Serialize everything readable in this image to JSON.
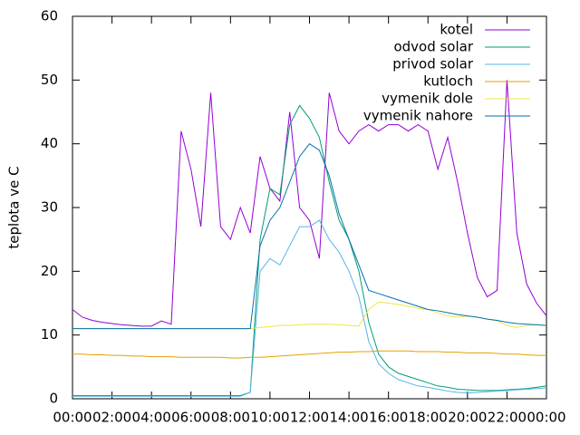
{
  "chart_data": {
    "type": "line",
    "ylabel": "teplota ve C",
    "x": [
      0,
      0.5,
      1,
      1.5,
      2,
      2.5,
      3,
      3.5,
      4,
      4.5,
      5,
      5.5,
      6,
      6.5,
      7,
      7.5,
      8,
      8.5,
      9,
      9.5,
      10,
      10.5,
      11,
      11.5,
      12,
      12.5,
      13,
      13.5,
      14,
      14.5,
      15,
      15.5,
      16,
      16.5,
      17,
      17.5,
      18,
      18.5,
      19,
      19.5,
      20,
      20.5,
      21,
      21.5,
      22,
      22.5,
      23,
      23.5,
      24
    ],
    "xlim": [
      0,
      24
    ],
    "xticks": [
      {
        "value": 0,
        "label": "00:00"
      },
      {
        "value": 2,
        "label": "02:00"
      },
      {
        "value": 4,
        "label": "04:00"
      },
      {
        "value": 6,
        "label": "06:00"
      },
      {
        "value": 8,
        "label": "08:00"
      },
      {
        "value": 10,
        "label": "10:00"
      },
      {
        "value": 12,
        "label": "12:00"
      },
      {
        "value": 14,
        "label": "14:00"
      },
      {
        "value": 16,
        "label": "16:00"
      },
      {
        "value": 18,
        "label": "18:00"
      },
      {
        "value": 20,
        "label": "20:00"
      },
      {
        "value": 22,
        "label": "22:00"
      },
      {
        "value": 24,
        "label": "00:00"
      }
    ],
    "ylim": [
      0,
      60
    ],
    "yticks": [
      0,
      10,
      20,
      30,
      40,
      50,
      60
    ],
    "legend": "top-right",
    "series": [
      {
        "name": "kotel",
        "color": "#9400d3",
        "values": [
          14,
          12.8,
          12.3,
          12,
          11.8,
          11.6,
          11.5,
          11.4,
          11.4,
          12.2,
          11.7,
          42,
          36,
          27,
          48,
          27,
          25,
          30,
          26,
          38,
          33,
          31,
          45,
          30,
          28,
          22,
          48,
          42,
          40,
          42,
          43,
          42,
          43,
          43,
          42,
          43,
          42,
          36,
          41,
          34,
          26,
          19,
          16,
          17,
          50,
          26,
          18,
          15,
          13
        ]
      },
      {
        "name": "odvod solar",
        "color": "#009e73",
        "values": [
          0.5,
          0.5,
          0.5,
          0.5,
          0.5,
          0.5,
          0.5,
          0.5,
          0.5,
          0.5,
          0.5,
          0.5,
          0.5,
          0.5,
          0.5,
          0.5,
          0.5,
          0.5,
          1,
          25,
          33,
          32,
          43,
          46,
          44,
          41,
          34,
          28,
          25,
          20,
          12,
          7,
          5,
          4,
          3.5,
          3,
          2.5,
          2,
          1.8,
          1.5,
          1.4,
          1.3,
          1.3,
          1.3,
          1.4,
          1.5,
          1.6,
          1.8,
          2
        ]
      },
      {
        "name": "privod solar",
        "color": "#56b4e9",
        "values": [
          0.4,
          0.4,
          0.4,
          0.4,
          0.4,
          0.4,
          0.4,
          0.4,
          0.4,
          0.4,
          0.4,
          0.4,
          0.4,
          0.4,
          0.4,
          0.4,
          0.4,
          0.4,
          1,
          20,
          22,
          21,
          24,
          27,
          27,
          28,
          25,
          23,
          20,
          16,
          9,
          5.5,
          4,
          3,
          2.5,
          2,
          1.8,
          1.5,
          1.2,
          1,
          0.9,
          1,
          1.1,
          1.2,
          1.3,
          1.4,
          1.5,
          1.6,
          1.7
        ]
      },
      {
        "name": "kutloch",
        "color": "#e69f00",
        "values": [
          7,
          7,
          6.9,
          6.9,
          6.8,
          6.8,
          6.7,
          6.7,
          6.6,
          6.6,
          6.6,
          6.5,
          6.5,
          6.5,
          6.5,
          6.5,
          6.4,
          6.4,
          6.5,
          6.5,
          6.6,
          6.7,
          6.8,
          6.9,
          7,
          7.1,
          7.2,
          7.3,
          7.3,
          7.4,
          7.4,
          7.5,
          7.5,
          7.5,
          7.5,
          7.4,
          7.4,
          7.4,
          7.3,
          7.3,
          7.2,
          7.2,
          7.2,
          7.1,
          7,
          7,
          6.9,
          6.8,
          6.8
        ]
      },
      {
        "name": "vymenik dole",
        "color": "#f0e442",
        "values": [
          11,
          11,
          11,
          11,
          11,
          11,
          11,
          11,
          11,
          11,
          11,
          11,
          11,
          11,
          11,
          11,
          11,
          11,
          11,
          11.2,
          11.3,
          11.5,
          11.5,
          11.6,
          11.7,
          11.7,
          11.7,
          11.6,
          11.5,
          11.4,
          14,
          15.2,
          15,
          14.8,
          14.5,
          14.2,
          14,
          13.5,
          13,
          12.8,
          13,
          12.8,
          12.5,
          12.2,
          11.5,
          11.2,
          11.5,
          11.6,
          11.5
        ]
      },
      {
        "name": "vymenik nahore",
        "color": "#0072b2",
        "values": [
          11,
          11,
          11,
          11,
          11,
          11,
          11,
          11,
          11,
          11,
          11,
          11,
          11,
          11,
          11,
          11,
          11,
          11,
          11,
          24,
          28,
          30,
          34,
          38,
          40,
          39,
          35,
          29,
          25,
          21,
          17,
          16.5,
          16,
          15.5,
          15,
          14.5,
          14,
          13.8,
          13.5,
          13.2,
          13,
          12.8,
          12.5,
          12.3,
          12,
          11.8,
          11.7,
          11.6,
          11.5
        ]
      }
    ]
  }
}
